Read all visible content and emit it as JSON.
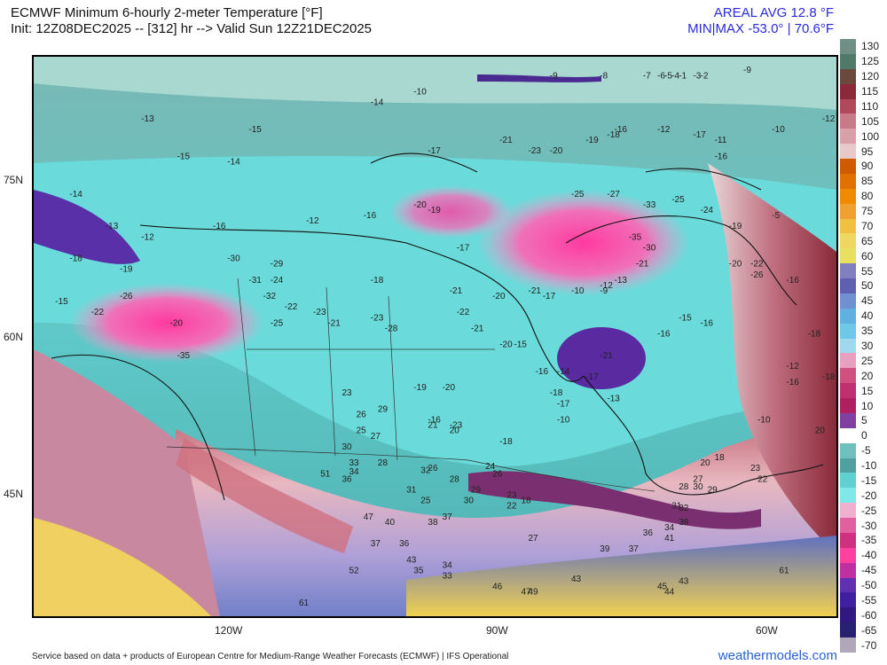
{
  "header": {
    "title": "ECMWF Minimum 6-hourly 2-meter Temperature [°F]",
    "init": "Init: 12Z08DEC2025 -- [312] hr --> Valid Sun 12Z21DEC2025",
    "areal_avg": "AREAL AVG 12.8 °F",
    "minmax": "MIN|MAX -53.0° | 70.6°F"
  },
  "axes": {
    "lon_labels": [
      "120W",
      "90W",
      "60W"
    ],
    "lat_labels": [
      "75N",
      "60N",
      "45N"
    ]
  },
  "colorbar": {
    "labels": [
      "130",
      "125",
      "120",
      "115",
      "110",
      "105",
      "100",
      "95",
      "90",
      "85",
      "80",
      "75",
      "70",
      "65",
      "60",
      "55",
      "50",
      "45",
      "40",
      "35",
      "30",
      "25",
      "20",
      "15",
      "10",
      "5",
      "0",
      "-5",
      "-10",
      "-15",
      "-20",
      "-25",
      "-30",
      "-35",
      "-40",
      "-45",
      "-50",
      "-55",
      "-60",
      "-65",
      "-70"
    ],
    "colors": [
      "#6f8f86",
      "#4f7a6a",
      "#6a4a3c",
      "#8b2a3a",
      "#b04a5a",
      "#c87a88",
      "#d8a0a8",
      "#e8c8c8",
      "#d05a00",
      "#e07000",
      "#f08a00",
      "#f0a030",
      "#f0c040",
      "#f0d860",
      "#e8e060",
      "#8080c0",
      "#6060b0",
      "#7090d0",
      "#60b0e0",
      "#70c8e8",
      "#a0d8f0",
      "#e8a0c0",
      "#d05080",
      "#c03070",
      "#b02060",
      "#8040a0",
      "#ffffff",
      "#70c0c0",
      "#50a0a0",
      "#60d0d0",
      "#80e8e8",
      "#f0b0d0",
      "#e060a0",
      "#d03080",
      "#ff40a0",
      "#c030a0",
      "#6030b0",
      "#4020a0",
      "#301880",
      "#282070",
      "#b0a8b8"
    ]
  },
  "map": {
    "value_labels": [
      {
        "t": "-10",
        "lon": -112,
        "lat": 78.5
      },
      {
        "t": "-9",
        "lon": -93,
        "lat": 80
      },
      {
        "t": "-8",
        "lon": -86,
        "lat": 80
      },
      {
        "t": "-7",
        "lon": -80,
        "lat": 80
      },
      {
        "t": "-6",
        "lon": -78,
        "lat": 80
      },
      {
        "t": "-5",
        "lon": -77,
        "lat": 80
      },
      {
        "t": "-4",
        "lon": -76,
        "lat": 80
      },
      {
        "t": "-1",
        "lon": -75,
        "lat": 80
      },
      {
        "t": "-3",
        "lon": -73,
        "lat": 80
      },
      {
        "t": "-2",
        "lon": -72,
        "lat": 80
      },
      {
        "t": "-9",
        "lon": -66,
        "lat": 80.5
      },
      {
        "t": "-14",
        "lon": -118,
        "lat": 77.5
      },
      {
        "t": "-13",
        "lon": -150,
        "lat": 76
      },
      {
        "t": "-15",
        "lon": -135,
        "lat": 75
      },
      {
        "t": "-15",
        "lon": -145,
        "lat": 72.5
      },
      {
        "t": "-14",
        "lon": -138,
        "lat": 72
      },
      {
        "t": "-17",
        "lon": -110,
        "lat": 73
      },
      {
        "t": "-21",
        "lon": -100,
        "lat": 74
      },
      {
        "t": "-23",
        "lon": -96,
        "lat": 73
      },
      {
        "t": "-20",
        "lon": -93,
        "lat": 73
      },
      {
        "t": "-19",
        "lon": -88,
        "lat": 74
      },
      {
        "t": "-16",
        "lon": -84,
        "lat": 75
      },
      {
        "t": "-18",
        "lon": -85,
        "lat": 74.5
      },
      {
        "t": "-12",
        "lon": -78,
        "lat": 75
      },
      {
        "t": "-17",
        "lon": -73,
        "lat": 74.5
      },
      {
        "t": "-11",
        "lon": -70,
        "lat": 74
      },
      {
        "t": "-10",
        "lon": -62,
        "lat": 75
      },
      {
        "t": "-12",
        "lon": -55,
        "lat": 76
      },
      {
        "t": "-16",
        "lon": -70,
        "lat": 72.5
      },
      {
        "t": "-25",
        "lon": -90,
        "lat": 69
      },
      {
        "t": "-27",
        "lon": -85,
        "lat": 69
      },
      {
        "t": "-33",
        "lon": -80,
        "lat": 68
      },
      {
        "t": "-25",
        "lon": -76,
        "lat": 68.5
      },
      {
        "t": "-24",
        "lon": -72,
        "lat": 67.5
      },
      {
        "t": "-19",
        "lon": -68,
        "lat": 66
      },
      {
        "t": "-35",
        "lon": -82,
        "lat": 65
      },
      {
        "t": "-30",
        "lon": -80,
        "lat": 64
      },
      {
        "t": "-21",
        "lon": -81,
        "lat": 62.5
      },
      {
        "t": "-13",
        "lon": -84,
        "lat": 61
      },
      {
        "t": "-12",
        "lon": -86,
        "lat": 60.5
      },
      {
        "t": "-10",
        "lon": -90,
        "lat": 60
      },
      {
        "t": "-9",
        "lon": -86,
        "lat": 60
      },
      {
        "t": "-17",
        "lon": -94,
        "lat": 59.5
      },
      {
        "t": "-20",
        "lon": -101,
        "lat": 59.5
      },
      {
        "t": "-22",
        "lon": -106,
        "lat": 58
      },
      {
        "t": "-21",
        "lon": -104,
        "lat": 56.5
      },
      {
        "t": "-20",
        "lon": -100,
        "lat": 55
      },
      {
        "t": "-15",
        "lon": -98,
        "lat": 55
      },
      {
        "t": "-16",
        "lon": -95,
        "lat": 52.5
      },
      {
        "t": "-14",
        "lon": -92,
        "lat": 52.5
      },
      {
        "t": "-17",
        "lon": -88,
        "lat": 52
      },
      {
        "t": "-21",
        "lon": -86,
        "lat": 54
      },
      {
        "t": "-18",
        "lon": -93,
        "lat": 50.5
      },
      {
        "t": "-17",
        "lon": -92,
        "lat": 49.5
      },
      {
        "t": "-10",
        "lon": -92,
        "lat": 48
      },
      {
        "t": "-13",
        "lon": -85,
        "lat": 50
      },
      {
        "t": "-16",
        "lon": -78,
        "lat": 56
      },
      {
        "t": "-15",
        "lon": -75,
        "lat": 57.5
      },
      {
        "t": "-16",
        "lon": -72,
        "lat": 57
      },
      {
        "t": "-12",
        "lon": -60,
        "lat": 53
      },
      {
        "t": "-18",
        "lon": -57,
        "lat": 56
      },
      {
        "t": "-16",
        "lon": -60,
        "lat": 61
      },
      {
        "t": "-5",
        "lon": -62,
        "lat": 67
      },
      {
        "t": "-20",
        "lon": -68,
        "lat": 62.5
      },
      {
        "t": "-22",
        "lon": -65,
        "lat": 62.5
      },
      {
        "t": "-26",
        "lon": -65,
        "lat": 61.5
      },
      {
        "t": "-30",
        "lon": -138,
        "lat": 63
      },
      {
        "t": "-29",
        "lon": -132,
        "lat": 62.5
      },
      {
        "t": "-31",
        "lon": -135,
        "lat": 61
      },
      {
        "t": "-24",
        "lon": -132,
        "lat": 61
      },
      {
        "t": "-32",
        "lon": -133,
        "lat": 59.5
      },
      {
        "t": "-22",
        "lon": -130,
        "lat": 58.5
      },
      {
        "t": "-25",
        "lon": -132,
        "lat": 57
      },
      {
        "t": "-23",
        "lon": -126,
        "lat": 58
      },
      {
        "t": "-21",
        "lon": -124,
        "lat": 57
      },
      {
        "t": "-28",
        "lon": -116,
        "lat": 56.5
      },
      {
        "t": "-23",
        "lon": -118,
        "lat": 57.5
      },
      {
        "t": "-19",
        "lon": -112,
        "lat": 51
      },
      {
        "t": "-20",
        "lon": -108,
        "lat": 51
      },
      {
        "t": "-16",
        "lon": -110,
        "lat": 48
      },
      {
        "t": "-23",
        "lon": -107,
        "lat": 47.5
      },
      {
        "t": "-18",
        "lon": -100,
        "lat": 46
      },
      {
        "t": "-18",
        "lon": -118,
        "lat": 61
      },
      {
        "t": "-21",
        "lon": -107,
        "lat": 60
      },
      {
        "t": "-21",
        "lon": -96,
        "lat": 60
      },
      {
        "t": "-17",
        "lon": -106,
        "lat": 64
      },
      {
        "t": "-12",
        "lon": -127,
        "lat": 66.5
      },
      {
        "t": "-16",
        "lon": -119,
        "lat": 67
      },
      {
        "t": "-19",
        "lon": -110,
        "lat": 67.5
      },
      {
        "t": "-20",
        "lon": -112,
        "lat": 68
      },
      {
        "t": "-16",
        "lon": -140,
        "lat": 66
      },
      {
        "t": "-14",
        "lon": -160,
        "lat": 69
      },
      {
        "t": "-13",
        "lon": -155,
        "lat": 66
      },
      {
        "t": "-12",
        "lon": -150,
        "lat": 65
      },
      {
        "t": "-18",
        "lon": -160,
        "lat": 63
      },
      {
        "t": "-19",
        "lon": -153,
        "lat": 62
      },
      {
        "t": "-15",
        "lon": -162,
        "lat": 59
      },
      {
        "t": "-22",
        "lon": -157,
        "lat": 58
      },
      {
        "t": "-26",
        "lon": -153,
        "lat": 59.5
      },
      {
        "t": "-20",
        "lon": -146,
        "lat": 57
      },
      {
        "t": "-35",
        "lon": -145,
        "lat": 54
      },
      {
        "t": "-16",
        "lon": -60,
        "lat": 51.5
      },
      {
        "t": "-18",
        "lon": -55,
        "lat": 52
      },
      {
        "t": "-10",
        "lon": -64,
        "lat": 48
      },
      {
        "t": "23",
        "lon": -122,
        "lat": 50.5
      },
      {
        "t": "26",
        "lon": -120,
        "lat": 48.5
      },
      {
        "t": "29",
        "lon": -117,
        "lat": 49
      },
      {
        "t": "25",
        "lon": -120,
        "lat": 47
      },
      {
        "t": "27",
        "lon": -118,
        "lat": 46.5
      },
      {
        "t": "30",
        "lon": -122,
        "lat": 45.5
      },
      {
        "t": "33",
        "lon": -121,
        "lat": 44
      },
      {
        "t": "34",
        "lon": -121,
        "lat": 43.2
      },
      {
        "t": "28",
        "lon": -117,
        "lat": 44
      },
      {
        "t": "32",
        "lon": -111,
        "lat": 43.3
      },
      {
        "t": "31",
        "lon": -113,
        "lat": 41.5
      },
      {
        "t": "29",
        "lon": -104,
        "lat": 41.5
      },
      {
        "t": "28",
        "lon": -107,
        "lat": 42.5
      },
      {
        "t": "30",
        "lon": -105,
        "lat": 40.5
      },
      {
        "t": "26",
        "lon": -110,
        "lat": 43.5
      },
      {
        "t": "21",
        "lon": -110,
        "lat": 47.5
      },
      {
        "t": "20",
        "lon": -107,
        "lat": 47
      },
      {
        "t": "24",
        "lon": -102,
        "lat": 43.7
      },
      {
        "t": "26",
        "lon": -101,
        "lat": 43
      },
      {
        "t": "23",
        "lon": -99,
        "lat": 41
      },
      {
        "t": "22",
        "lon": -99,
        "lat": 40
      },
      {
        "t": "18",
        "lon": -97,
        "lat": 40.5
      },
      {
        "t": "27",
        "lon": -96,
        "lat": 37
      },
      {
        "t": "25",
        "lon": -111,
        "lat": 40.5
      },
      {
        "t": "36",
        "lon": -114,
        "lat": 36.5
      },
      {
        "t": "38",
        "lon": -110,
        "lat": 38.5
      },
      {
        "t": "37",
        "lon": -108,
        "lat": 39
      },
      {
        "t": "34",
        "lon": -108,
        "lat": 34.5
      },
      {
        "t": "33",
        "lon": -108,
        "lat": 33.5
      },
      {
        "t": "43",
        "lon": -113,
        "lat": 35
      },
      {
        "t": "35",
        "lon": -112,
        "lat": 34
      },
      {
        "t": "47",
        "lon": -119,
        "lat": 39
      },
      {
        "t": "40",
        "lon": -116,
        "lat": 38.5
      },
      {
        "t": "37",
        "lon": -118,
        "lat": 36.5
      },
      {
        "t": "51",
        "lon": -125,
        "lat": 43
      },
      {
        "t": "36",
        "lon": -122,
        "lat": 42.5
      },
      {
        "t": "61",
        "lon": -128,
        "lat": 31
      },
      {
        "t": "52",
        "lon": -121,
        "lat": 34
      },
      {
        "t": "46",
        "lon": -101,
        "lat": 32.5
      },
      {
        "t": "47",
        "lon": -97,
        "lat": 32
      },
      {
        "t": "49",
        "lon": -96,
        "lat": 32
      },
      {
        "t": "43",
        "lon": -90,
        "lat": 33.2
      },
      {
        "t": "39",
        "lon": -86,
        "lat": 36
      },
      {
        "t": "37",
        "lon": -82,
        "lat": 36
      },
      {
        "t": "36",
        "lon": -80,
        "lat": 37.5
      },
      {
        "t": "41",
        "lon": -77,
        "lat": 37
      },
      {
        "t": "38",
        "lon": -75,
        "lat": 38.5
      },
      {
        "t": "34",
        "lon": -77,
        "lat": 38
      },
      {
        "t": "32",
        "lon": -75,
        "lat": 39.8
      },
      {
        "t": "31",
        "lon": -76,
        "lat": 40
      },
      {
        "t": "29",
        "lon": -71,
        "lat": 41.5
      },
      {
        "t": "30",
        "lon": -73,
        "lat": 41.8
      },
      {
        "t": "28",
        "lon": -75,
        "lat": 41.8
      },
      {
        "t": "27",
        "lon": -73,
        "lat": 42.5
      },
      {
        "t": "20",
        "lon": -72,
        "lat": 44
      },
      {
        "t": "18",
        "lon": -70,
        "lat": 44.5
      },
      {
        "t": "23",
        "lon": -65,
        "lat": 43.5
      },
      {
        "t": "22",
        "lon": -64,
        "lat": 42.5
      },
      {
        "t": "20",
        "lon": -56,
        "lat": 47
      },
      {
        "t": "61",
        "lon": -61,
        "lat": 34
      },
      {
        "t": "43",
        "lon": -75,
        "lat": 33
      },
      {
        "t": "45",
        "lon": -78,
        "lat": 32.5
      },
      {
        "t": "44",
        "lon": -77,
        "lat": 32
      }
    ]
  }
}
